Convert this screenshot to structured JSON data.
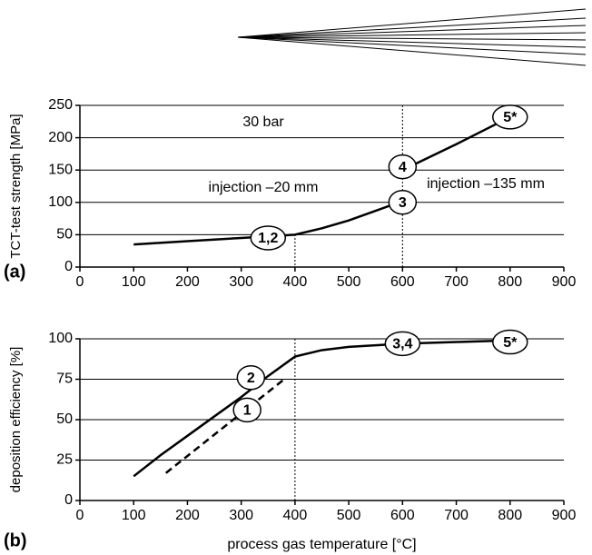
{
  "chart_data": [
    {
      "type": "line",
      "ylabel": "TCT-test strength [MPa]",
      "panel": "(a)",
      "xlim": [
        0,
        900
      ],
      "xticks": [
        0,
        100,
        200,
        300,
        400,
        500,
        600,
        700,
        800,
        900
      ],
      "ylim": [
        0,
        250
      ],
      "yticks": [
        0,
        50,
        100,
        150,
        200,
        250
      ],
      "grid": true,
      "series": [
        {
          "color": "#000000",
          "line_style": "solid",
          "x": [
            100,
            200,
            300,
            400,
            450,
            500,
            550,
            600,
            600,
            600,
            700,
            800
          ],
          "values": [
            35,
            40,
            45,
            50,
            60,
            72,
            87,
            102,
            null,
            150,
            190,
            232
          ]
        }
      ],
      "markers": [
        {
          "text": "1,2",
          "x": 350,
          "y": 45
        },
        {
          "text": "3",
          "x": 600,
          "y": 100
        },
        {
          "text": "4",
          "x": 600,
          "y": 155
        },
        {
          "text": "5*",
          "x": 800,
          "y": 232
        }
      ],
      "vlines": [
        400,
        600
      ],
      "annotations": [
        "30 bar",
        "injection –20 mm",
        "injection –135 mm"
      ]
    },
    {
      "type": "line",
      "xlabel": "process gas temperature [°C]",
      "ylabel": "deposition efficiency [%]",
      "panel": "(b)",
      "xlim": [
        0,
        900
      ],
      "xticks": [
        0,
        100,
        200,
        300,
        400,
        500,
        600,
        700,
        800,
        900
      ],
      "ylim": [
        0,
        100
      ],
      "yticks": [
        0,
        25,
        50,
        75,
        100
      ],
      "grid": true,
      "series": [
        {
          "color": "#000000",
          "line_style": "solid",
          "x": [
            100,
            150,
            200,
            250,
            300,
            350,
            400,
            450,
            500,
            600,
            700,
            800
          ],
          "values": [
            15,
            28,
            40,
            52,
            64,
            77,
            89,
            93,
            95,
            97,
            98,
            99
          ]
        },
        {
          "color": "#000000",
          "line_style": "dashed",
          "x": [
            160,
            270,
            380
          ],
          "values": [
            17,
            46,
            75
          ]
        }
      ],
      "markers": [
        {
          "text": "2",
          "x": 318,
          "y": 76
        },
        {
          "text": "1",
          "x": 311,
          "y": 56
        },
        {
          "text": "3,4",
          "x": 600,
          "y": 97
        },
        {
          "text": "5*",
          "x": 800,
          "y": 98
        }
      ],
      "vlines": [
        400
      ]
    }
  ]
}
